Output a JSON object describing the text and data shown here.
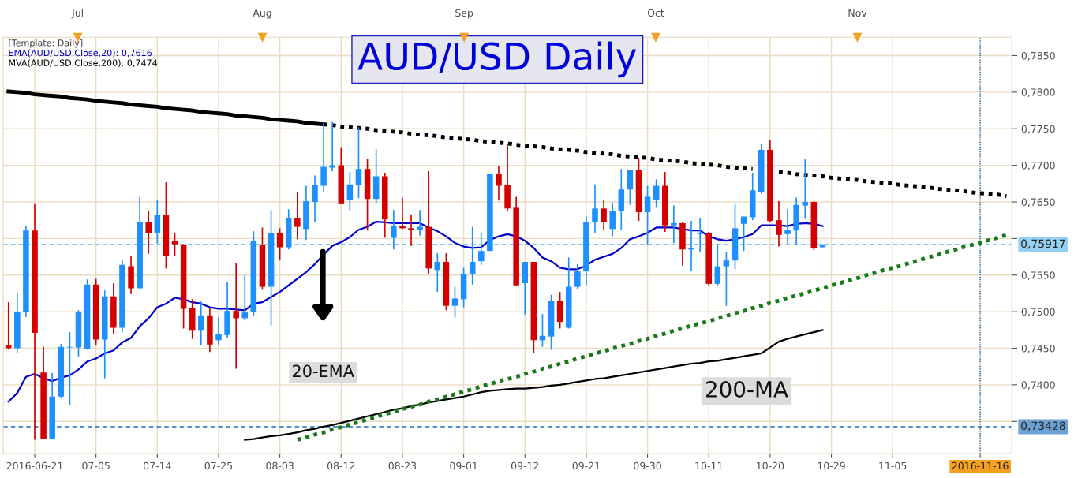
{
  "chart_data": {
    "type": "candlestick",
    "title": "AUD/USD Daily",
    "legend_title": "[Template: Daily]",
    "legend": "top left",
    "grid": true,
    "categories": [
      null,
      null,
      null,
      "2016-06-21",
      null,
      null,
      null,
      null,
      null,
      null,
      "07-05",
      null,
      null,
      null,
      null,
      null,
      null,
      "07-14",
      null,
      null,
      null,
      null,
      null,
      null,
      "07-25",
      null,
      null,
      null,
      null,
      null,
      null,
      "08-03",
      null,
      null,
      null,
      null,
      null,
      null,
      "08-12",
      null,
      null,
      null,
      null,
      null,
      null,
      "08-23",
      null,
      null,
      null,
      null,
      null,
      null,
      "09-01",
      null,
      null,
      null,
      null,
      null,
      null,
      "09-12",
      null,
      null,
      null,
      null,
      null,
      null,
      "09-21",
      null,
      null,
      null,
      null,
      null,
      null,
      "09-30",
      null,
      null,
      null,
      null,
      null,
      null,
      "10-11",
      null,
      null,
      null,
      null,
      null,
      null,
      "10-20",
      null,
      null,
      null,
      null,
      null,
      null,
      "10-29",
      null,
      null,
      null,
      null,
      null,
      null,
      "11-05",
      null,
      null,
      null,
      null,
      null,
      null,
      null,
      null,
      null,
      "2016-11-16",
      null,
      null,
      null
    ],
    "ohlc": [
      [
        0.7455,
        0.7513,
        0.7448,
        0.745
      ],
      [
        0.745,
        0.7526,
        0.7443,
        0.75
      ],
      [
        0.75,
        0.7617,
        0.7493,
        0.7611
      ],
      [
        0.7611,
        0.7648,
        0.7325,
        0.7471
      ],
      [
        0.7417,
        0.7452,
        0.7326,
        0.7326
      ],
      [
        0.7326,
        0.7416,
        0.7326,
        0.7384
      ],
      [
        0.7384,
        0.7456,
        0.7382,
        0.7452
      ],
      [
        0.7451,
        0.7472,
        0.7373,
        0.7452
      ],
      [
        0.7451,
        0.7502,
        0.7439,
        0.7499
      ],
      [
        0.7449,
        0.7544,
        0.7448,
        0.7537
      ],
      [
        0.7537,
        0.7545,
        0.7455,
        0.7462
      ],
      [
        0.7462,
        0.7529,
        0.7409,
        0.7521
      ],
      [
        0.7521,
        0.7539,
        0.7469,
        0.7478
      ],
      [
        0.7478,
        0.7571,
        0.7472,
        0.7564
      ],
      [
        0.7562,
        0.7576,
        0.7524,
        0.7532
      ],
      [
        0.7532,
        0.7657,
        0.7532,
        0.7623
      ],
      [
        0.7623,
        0.7638,
        0.7579,
        0.7607
      ],
      [
        0.7607,
        0.7653,
        0.7593,
        0.7632
      ],
      [
        0.7632,
        0.7677,
        0.7559,
        0.7576
      ],
      [
        0.7596,
        0.7607,
        0.7576,
        0.7592
      ],
      [
        0.7592,
        0.7592,
        0.7477,
        0.7504
      ],
      [
        0.7505,
        0.7517,
        0.7463,
        0.7474
      ],
      [
        0.7474,
        0.7514,
        0.7454,
        0.7495
      ],
      [
        0.7495,
        0.7505,
        0.7445,
        0.7455
      ],
      [
        0.7461,
        0.7493,
        0.7454,
        0.7469
      ],
      [
        0.7468,
        0.754,
        0.7464,
        0.7501
      ],
      [
        0.7501,
        0.7566,
        0.7422,
        0.7491
      ],
      [
        0.7491,
        0.755,
        0.7488,
        0.7499
      ],
      [
        0.7499,
        0.761,
        0.7494,
        0.7597
      ],
      [
        0.7591,
        0.7615,
        0.753,
        0.7534
      ],
      [
        0.7534,
        0.7639,
        0.7481,
        0.7608
      ],
      [
        0.7608,
        0.7614,
        0.757,
        0.7588
      ],
      [
        0.7588,
        0.764,
        0.7585,
        0.7628
      ],
      [
        0.7628,
        0.7664,
        0.7599,
        0.7616
      ],
      [
        0.7613,
        0.7672,
        0.7598,
        0.7651
      ],
      [
        0.765,
        0.7686,
        0.7623,
        0.7673
      ],
      [
        0.7672,
        0.7758,
        0.7664,
        0.7698
      ],
      [
        0.7697,
        0.7759,
        0.7692,
        0.77
      ],
      [
        0.77,
        0.7725,
        0.7648,
        0.7648
      ],
      [
        0.7653,
        0.7691,
        0.7638,
        0.7674
      ],
      [
        0.7673,
        0.7752,
        0.7655,
        0.7695
      ],
      [
        0.7695,
        0.7709,
        0.7611,
        0.7654
      ],
      [
        0.7654,
        0.7722,
        0.7649,
        0.7685
      ],
      [
        0.7685,
        0.769,
        0.7601,
        0.7626
      ],
      [
        0.7601,
        0.7639,
        0.7585,
        0.7617
      ],
      [
        0.7617,
        0.7656,
        0.7613,
        0.7614
      ],
      [
        0.7614,
        0.7633,
        0.759,
        0.7612
      ],
      [
        0.7612,
        0.7639,
        0.7604,
        0.7616
      ],
      [
        0.7616,
        0.7692,
        0.7552,
        0.7559
      ],
      [
        0.7557,
        0.758,
        0.7527,
        0.7568
      ],
      [
        0.7568,
        0.758,
        0.7502,
        0.7508
      ],
      [
        0.7508,
        0.7534,
        0.7492,
        0.7518
      ],
      [
        0.7517,
        0.756,
        0.7506,
        0.7552
      ],
      [
        0.7552,
        0.7616,
        0.7537,
        0.7568
      ],
      [
        0.7569,
        0.7608,
        0.7564,
        0.7583
      ],
      [
        0.7583,
        0.7688,
        0.7583,
        0.7688
      ],
      [
        0.7688,
        0.7699,
        0.7652,
        0.7672
      ],
      [
        0.7673,
        0.773,
        0.7638,
        0.7641
      ],
      [
        0.7642,
        0.7657,
        0.7536,
        0.7536
      ],
      [
        0.7539,
        0.7568,
        0.7496,
        0.7568
      ],
      [
        0.7568,
        0.7568,
        0.7444,
        0.7461
      ],
      [
        0.7461,
        0.7497,
        0.7452,
        0.7467
      ],
      [
        0.7466,
        0.7523,
        0.7448,
        0.7515
      ],
      [
        0.7515,
        0.7527,
        0.7477,
        0.7486
      ],
      [
        0.7478,
        0.7574,
        0.7477,
        0.7534
      ],
      [
        0.7534,
        0.7565,
        0.7531,
        0.7555
      ],
      [
        0.7555,
        0.7631,
        0.7536,
        0.7622
      ],
      [
        0.7622,
        0.7674,
        0.7607,
        0.7641
      ],
      [
        0.7641,
        0.7653,
        0.7611,
        0.7622
      ],
      [
        0.7613,
        0.7649,
        0.7603,
        0.7637
      ],
      [
        0.7637,
        0.7695,
        0.7612,
        0.7667
      ],
      [
        0.7667,
        0.7693,
        0.7646,
        0.7693
      ],
      [
        0.7693,
        0.771,
        0.7624,
        0.7636
      ],
      [
        0.7636,
        0.7672,
        0.7591,
        0.7657
      ],
      [
        0.7653,
        0.7681,
        0.7642,
        0.7672
      ],
      [
        0.7672,
        0.7691,
        0.7609,
        0.7618
      ],
      [
        0.7618,
        0.7645,
        0.7594,
        0.7621
      ],
      [
        0.7621,
        0.7623,
        0.7563,
        0.7585
      ],
      [
        0.7585,
        0.7624,
        0.7555,
        0.7587
      ],
      [
        0.7606,
        0.7628,
        0.7581,
        0.7608
      ],
      [
        0.7608,
        0.7609,
        0.7535,
        0.7538
      ],
      [
        0.7538,
        0.7593,
        0.7536,
        0.7562
      ],
      [
        0.7562,
        0.7582,
        0.7508,
        0.757
      ],
      [
        0.757,
        0.7648,
        0.7558,
        0.7614
      ],
      [
        0.762,
        0.763,
        0.7583,
        0.763
      ],
      [
        0.7629,
        0.769,
        0.7625,
        0.7666
      ],
      [
        0.7664,
        0.7729,
        0.7661,
        0.7721
      ],
      [
        0.7721,
        0.7734,
        0.7622,
        0.7624
      ],
      [
        0.7625,
        0.7651,
        0.7589,
        0.7605
      ],
      [
        0.7606,
        0.764,
        0.7593,
        0.7612
      ],
      [
        0.7611,
        0.7656,
        0.7591,
        0.7646
      ],
      [
        0.7645,
        0.7709,
        0.7627,
        0.765
      ],
      [
        0.765,
        0.7651,
        0.7584,
        0.7587
      ],
      [
        0.7588,
        0.7592,
        0.7588,
        0.7592
      ],
      null,
      null,
      null,
      null,
      null,
      null,
      null,
      null,
      null,
      null,
      null,
      null,
      null,
      null,
      null,
      null,
      null,
      null,
      null,
      null,
      null
    ],
    "colors": [
      "#d40000",
      "#1e8fff",
      "#1e8fff",
      "#d40000",
      "#d40000",
      "#1e8fff",
      "#1e8fff",
      "#1e8fff",
      "#1e8fff",
      "#1e8fff",
      "#d40000",
      "#1e8fff",
      "#d40000",
      "#1e8fff",
      "#d40000",
      "#1e8fff",
      "#d40000",
      "#1e8fff",
      "#d40000",
      "#d40000",
      "#d40000",
      "#d40000",
      "#1e8fff",
      "#d40000",
      "#1e8fff",
      "#1e8fff",
      "#d40000",
      "#1e8fff",
      "#1e8fff",
      "#d40000",
      "#1e8fff",
      "#d40000",
      "#1e8fff",
      "#d40000",
      "#1e8fff",
      "#1e8fff",
      "#1e8fff",
      "#1e8fff",
      "#d40000",
      "#1e8fff",
      "#1e8fff",
      "#d40000",
      "#1e8fff",
      "#d40000",
      "#1e8fff",
      "#d40000",
      "#d40000",
      "#1e8fff",
      "#d40000",
      "#1e8fff",
      "#d40000",
      "#1e8fff",
      "#1e8fff",
      "#1e8fff",
      "#1e8fff",
      "#1e8fff",
      "#d40000",
      "#d40000",
      "#d40000",
      "#1e8fff",
      "#d40000",
      "#1e8fff",
      "#1e8fff",
      "#d40000",
      "#1e8fff",
      "#1e8fff",
      "#1e8fff",
      "#1e8fff",
      "#d40000",
      "#1e8fff",
      "#1e8fff",
      "#1e8fff",
      "#d40000",
      "#1e8fff",
      "#1e8fff",
      "#d40000",
      "#1e8fff",
      "#d40000",
      "#1e8fff",
      "#1e8fff",
      "#d40000",
      "#1e8fff",
      "#1e8fff",
      "#1e8fff",
      "#1e8fff",
      "#1e8fff",
      "#1e8fff",
      "#d40000",
      "#d40000",
      "#1e8fff",
      "#1e8fff",
      "#1e8fff",
      "#d40000",
      "#1e8fff",
      null,
      null,
      null,
      null,
      null,
      null,
      null,
      null,
      null,
      null,
      null,
      null,
      null,
      null,
      null,
      null,
      null,
      null,
      null,
      null,
      null
    ],
    "series": [
      {
        "name": "EMA(AUD/USD.Close,20): 0,7616",
        "type": "line",
        "color": "#0000cc",
        "values": [
          0.7377,
          0.7389,
          0.7411,
          0.7415,
          0.7409,
          0.7405,
          0.741,
          0.7413,
          0.7421,
          0.7432,
          0.7436,
          0.7443,
          0.7447,
          0.7458,
          0.7464,
          0.748,
          0.7491,
          0.7506,
          0.7511,
          0.7519,
          0.7517,
          0.7513,
          0.7511,
          0.7506,
          0.7504,
          0.7504,
          0.7503,
          0.7502,
          0.7511,
          0.7513,
          0.752,
          0.7527,
          0.7536,
          0.7545,
          0.7554,
          0.7565,
          0.7578,
          0.759,
          0.7595,
          0.7602,
          0.7612,
          0.7616,
          0.7623,
          0.7622,
          0.7621,
          0.7621,
          0.7621,
          0.7621,
          0.7615,
          0.761,
          0.7603,
          0.7594,
          0.7589,
          0.7587,
          0.7588,
          0.7598,
          0.7603,
          0.7606,
          0.7603,
          0.7597,
          0.7587,
          0.7574,
          0.7569,
          0.756,
          0.7558,
          0.7558,
          0.7563,
          0.7571,
          0.7575,
          0.7579,
          0.7587,
          0.7599,
          0.7603,
          0.7608,
          0.7615,
          0.7615,
          0.7615,
          0.7613,
          0.7611,
          0.7611,
          0.7603,
          0.7599,
          0.7597,
          0.7599,
          0.7602,
          0.7606,
          0.7618,
          0.7618,
          0.7618,
          0.7617,
          0.762,
          0.7621,
          0.762,
          0.7617,
          null,
          null,
          null,
          null,
          null,
          null,
          null,
          null,
          null,
          null,
          null,
          null,
          null,
          null,
          null,
          null,
          null,
          null,
          null,
          null,
          null
        ]
      },
      {
        "name": "MVA(AUD/USD.Close,200): 0,7474",
        "type": "line",
        "color": "#000000",
        "values": [
          null,
          null,
          null,
          null,
          null,
          null,
          null,
          null,
          null,
          null,
          null,
          null,
          null,
          null,
          null,
          null,
          null,
          null,
          null,
          null,
          null,
          null,
          null,
          null,
          null,
          null,
          null,
          0.7325,
          0.7326,
          0.7328,
          0.733,
          0.7331,
          0.7333,
          0.7335,
          0.7338,
          0.734,
          0.7343,
          0.7345,
          0.7348,
          0.7351,
          0.7354,
          0.7357,
          0.736,
          0.7363,
          0.7366,
          0.7368,
          0.7371,
          0.7373,
          0.7376,
          0.7378,
          0.738,
          0.7382,
          0.7384,
          0.7387,
          0.739,
          0.7392,
          0.7393,
          0.7394,
          0.7395,
          0.7395,
          0.7396,
          0.7397,
          0.7399,
          0.74,
          0.7402,
          0.7404,
          0.7406,
          0.7408,
          0.7409,
          0.7411,
          0.7413,
          0.7415,
          0.7417,
          0.7419,
          0.7421,
          0.7423,
          0.7425,
          0.7427,
          0.7429,
          0.743,
          0.7432,
          0.7433,
          0.7435,
          0.7437,
          0.7439,
          0.7441,
          0.7443,
          0.7451,
          0.7459,
          0.7463,
          0.7466,
          0.7469,
          0.7472,
          0.7475,
          null,
          null,
          null,
          null,
          null,
          null,
          null,
          null,
          null,
          null,
          null,
          null,
          null,
          null,
          null,
          null,
          null,
          null,
          null,
          null,
          null
        ]
      },
      {
        "type": "line",
        "color": "#000000",
        "line_style": "solid",
        "values": [
          0.7801,
          0.78,
          0.7799,
          0.7797,
          0.7796,
          0.7795,
          0.7794,
          0.7792,
          0.7791,
          0.779,
          0.7788,
          0.7787,
          0.7786,
          0.7785,
          0.7783,
          0.7782,
          0.7781,
          0.778,
          0.7778,
          0.7777,
          0.7776,
          0.7775,
          0.7773,
          0.7772,
          0.7771,
          0.777,
          0.7768,
          0.7767,
          0.7766,
          0.7765,
          0.7763,
          0.7762,
          0.7761,
          0.776,
          0.7758,
          0.7757,
          0.7756,
          null,
          null,
          null,
          null,
          null,
          null,
          null,
          null,
          null,
          null,
          null,
          null,
          null,
          null,
          null,
          null,
          null,
          null,
          null,
          null,
          null,
          null,
          null,
          null,
          null,
          null,
          null,
          null,
          null,
          null,
          null,
          null,
          null,
          null,
          null,
          null,
          null,
          null,
          null,
          null,
          null,
          null,
          null,
          null,
          null,
          null,
          null,
          null,
          null,
          null,
          null,
          null,
          null,
          null,
          null,
          null,
          null,
          null,
          null,
          null,
          null,
          null,
          null,
          null,
          null,
          null,
          null,
          null,
          null,
          null,
          null,
          null,
          null,
          null,
          null,
          null,
          null,
          null
        ]
      },
      {
        "type": "line",
        "color": "#000000",
        "line_style": "dotted",
        "values": [
          null,
          null,
          null,
          null,
          null,
          null,
          null,
          null,
          null,
          null,
          null,
          null,
          null,
          null,
          null,
          null,
          null,
          null,
          null,
          null,
          null,
          null,
          null,
          null,
          null,
          null,
          null,
          null,
          null,
          null,
          null,
          null,
          null,
          null,
          null,
          null,
          0.7756,
          0.7755,
          0.7753,
          0.7752,
          0.7751,
          0.775,
          0.7748,
          0.7747,
          0.7746,
          0.7745,
          0.7743,
          0.7742,
          0.7741,
          0.774,
          0.7738,
          0.7737,
          0.7736,
          0.7735,
          0.7733,
          0.7732,
          0.7731,
          0.773,
          0.7728,
          0.7727,
          0.7726,
          0.7725,
          0.7723,
          0.7722,
          0.7721,
          0.772,
          0.7718,
          0.7717,
          0.7716,
          0.7715,
          0.7713,
          0.7712,
          0.7711,
          0.771,
          0.7708,
          0.7707,
          0.7706,
          0.7705,
          0.7703,
          0.7702,
          0.7701,
          0.77,
          0.7698,
          0.7697,
          0.7696,
          0.7695,
          null,
          null,
          0.7691,
          0.769,
          0.7688,
          0.7687,
          0.7686,
          0.7685,
          0.7683,
          0.7682,
          0.7681,
          0.768,
          0.7678,
          0.7677,
          0.7676,
          0.7675,
          0.7673,
          0.7672,
          0.7671,
          0.767,
          0.7668,
          0.7667,
          0.7666,
          0.7665,
          0.7663,
          0.7662,
          0.7661,
          0.766,
          0.7658
        ]
      },
      {
        "type": "line",
        "color": "#1a7a1a",
        "line_style": "dotted",
        "values": [
          null,
          null,
          null,
          null,
          null,
          null,
          null,
          null,
          null,
          null,
          null,
          null,
          null,
          null,
          null,
          null,
          null,
          null,
          null,
          null,
          null,
          null,
          null,
          null,
          null,
          null,
          null,
          null,
          null,
          null,
          null,
          null,
          null,
          0.7325,
          0.7328,
          0.7332,
          0.7335,
          0.7339,
          0.7342,
          0.7346,
          0.7349,
          0.7353,
          0.7356,
          0.736,
          0.7363,
          0.7367,
          0.737,
          0.7373,
          0.7377,
          0.738,
          0.7384,
          0.7387,
          0.7391,
          0.7394,
          0.7398,
          0.7401,
          0.7405,
          0.7408,
          0.7411,
          0.7415,
          0.7418,
          0.7422,
          0.7425,
          0.7429,
          0.7432,
          0.7436,
          0.7439,
          0.7443,
          0.7446,
          0.745,
          0.7453,
          0.7456,
          0.746,
          0.7463,
          0.7467,
          0.747,
          0.7474,
          0.7477,
          0.7481,
          0.7484,
          0.7487,
          0.7491,
          0.7494,
          0.7498,
          0.7501,
          0.7505,
          0.7508,
          0.7512,
          0.7515,
          0.7519,
          0.7522,
          0.7525,
          0.7529,
          0.7532,
          0.7536,
          0.7539,
          0.7543,
          0.7546,
          0.755,
          0.7553,
          0.7557,
          0.756,
          0.7563,
          0.7567,
          0.757,
          0.7574,
          0.7577,
          0.7581,
          0.7584,
          0.7588,
          0.7591,
          0.7594,
          0.7598,
          0.7601,
          0.7605
        ]
      }
    ],
    "ylim": [
      0.7306,
      0.7875
    ],
    "yticks": [
      {
        "value": 0.735,
        "label": null
      },
      {
        "value": 0.74,
        "label": "0,7400"
      },
      {
        "value": 0.745,
        "label": "0,7450"
      },
      {
        "value": 0.75,
        "label": "0,7500"
      },
      {
        "value": 0.755,
        "label": "0,7550"
      },
      {
        "value": 0.76,
        "label": null
      },
      {
        "value": 0.765,
        "label": "0,7650"
      },
      {
        "value": 0.77,
        "label": "0,7700"
      },
      {
        "value": 0.775,
        "label": "0,7750"
      },
      {
        "value": 0.78,
        "label": "0,7800"
      },
      {
        "value": 0.785,
        "label": "0,7850"
      }
    ],
    "ref_lines": [
      {
        "axis": "y",
        "value": 0.73428,
        "label": "0,73428",
        "color": "#1f6fbf",
        "line_style": "dashed"
      },
      {
        "axis": "y",
        "value": 0.75917,
        "label": "0,75917",
        "color": "#5bb8e8",
        "line_style": "dashed"
      },
      {
        "axis": "x",
        "value": "2016-11-16",
        "color": "#1f6fbf",
        "line_style": "dotted"
      }
    ],
    "annotations": [
      "20-EMA",
      "200-MA",
      "Jul",
      "Aug",
      "Sep",
      "Oct",
      "Nov"
    ]
  }
}
